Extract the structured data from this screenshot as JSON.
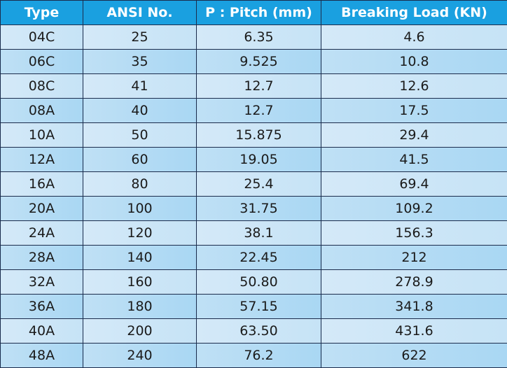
{
  "table": {
    "header": [
      "Type",
      "ANSI No.",
      "P : Pitch (mm)",
      "Breaking Load (KN)"
    ],
    "rows": [
      [
        "04C",
        "25",
        "6.35",
        "4.6"
      ],
      [
        "06C",
        "35",
        "9.525",
        "10.8"
      ],
      [
        "08C",
        "41",
        "12.7",
        "12.6"
      ],
      [
        "08A",
        "40",
        "12.7",
        "17.5"
      ],
      [
        "10A",
        "50",
        "15.875",
        "29.4"
      ],
      [
        "12A",
        "60",
        "19.05",
        "41.5"
      ],
      [
        "16A",
        "80",
        "25.4",
        "69.4"
      ],
      [
        "20A",
        "100",
        "31.75",
        "109.2"
      ],
      [
        "24A",
        "120",
        "38.1",
        "156.3"
      ],
      [
        "28A",
        "140",
        "22.45",
        "212"
      ],
      [
        "32A",
        "160",
        "50.80",
        "278.9"
      ],
      [
        "36A",
        "180",
        "57.15",
        "341.8"
      ],
      [
        "40A",
        "200",
        "63.50",
        "431.6"
      ],
      [
        "48A",
        "240",
        "76.2",
        "622"
      ]
    ]
  }
}
